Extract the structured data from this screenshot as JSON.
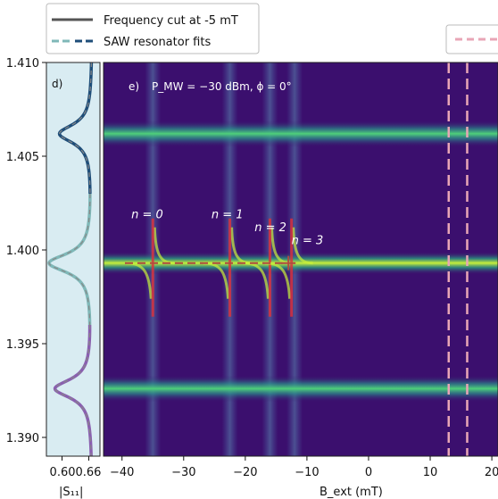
{
  "legend": {
    "items": [
      {
        "label": "Frequency cut at -5 mT",
        "color": "#555555",
        "style": "solid"
      },
      {
        "label": "SAW resonator fits",
        "colors": [
          "#7fb8b8",
          "#1f4e79"
        ],
        "style": "dashed"
      }
    ],
    "right_dashed_color": "#e8a6b6"
  },
  "panel_d": {
    "label": "d)",
    "xlabel": "|S₁₁|",
    "xticks": [
      "0.60",
      "0.66"
    ],
    "background": "#d9ecf2"
  },
  "panel_e": {
    "label": "e)",
    "condition": "P_MW = −30 dBm,  ϕ = 0°",
    "xlabel": "B_ext (mT)",
    "mode_labels": [
      "n = 0",
      "n = 1",
      "n = 2",
      "n = 3"
    ]
  },
  "chart_data": {
    "type": "heatmap",
    "y_axis": {
      "label": "",
      "ylim": [
        1.389,
        1.41
      ],
      "ticks": [
        1.39,
        1.395,
        1.4,
        1.405,
        1.41
      ]
    },
    "x_axis": {
      "label": "B_ext (mT)",
      "xlim": [
        -43,
        21
      ],
      "ticks": [
        -40,
        -30,
        -20,
        -10,
        0,
        10,
        20
      ]
    },
    "resonance_bands": [
      1.4062,
      1.3993,
      1.3926
    ],
    "vertical_features_mT": [
      -35,
      -22.5,
      -16,
      -12
    ],
    "dashed_lines_mT": [
      13,
      16
    ],
    "modes": [
      {
        "name": "n = 0",
        "field": -35
      },
      {
        "name": "n = 1",
        "field": -22.5
      },
      {
        "name": "n = 2",
        "field": -16
      },
      {
        "name": "n = 3",
        "field": -12.5
      }
    ],
    "cut_profile": {
      "xlim": [
        0.565,
        0.685
      ],
      "dips": [
        {
          "f": 1.4062,
          "s11": 0.595,
          "color": "#1f4e79"
        },
        {
          "f": 1.3993,
          "s11": 0.572,
          "color": "#7fb8b8"
        },
        {
          "f": 1.3926,
          "s11": 0.585,
          "color": "#8a5fb0"
        }
      ],
      "baseline": 0.668
    }
  }
}
